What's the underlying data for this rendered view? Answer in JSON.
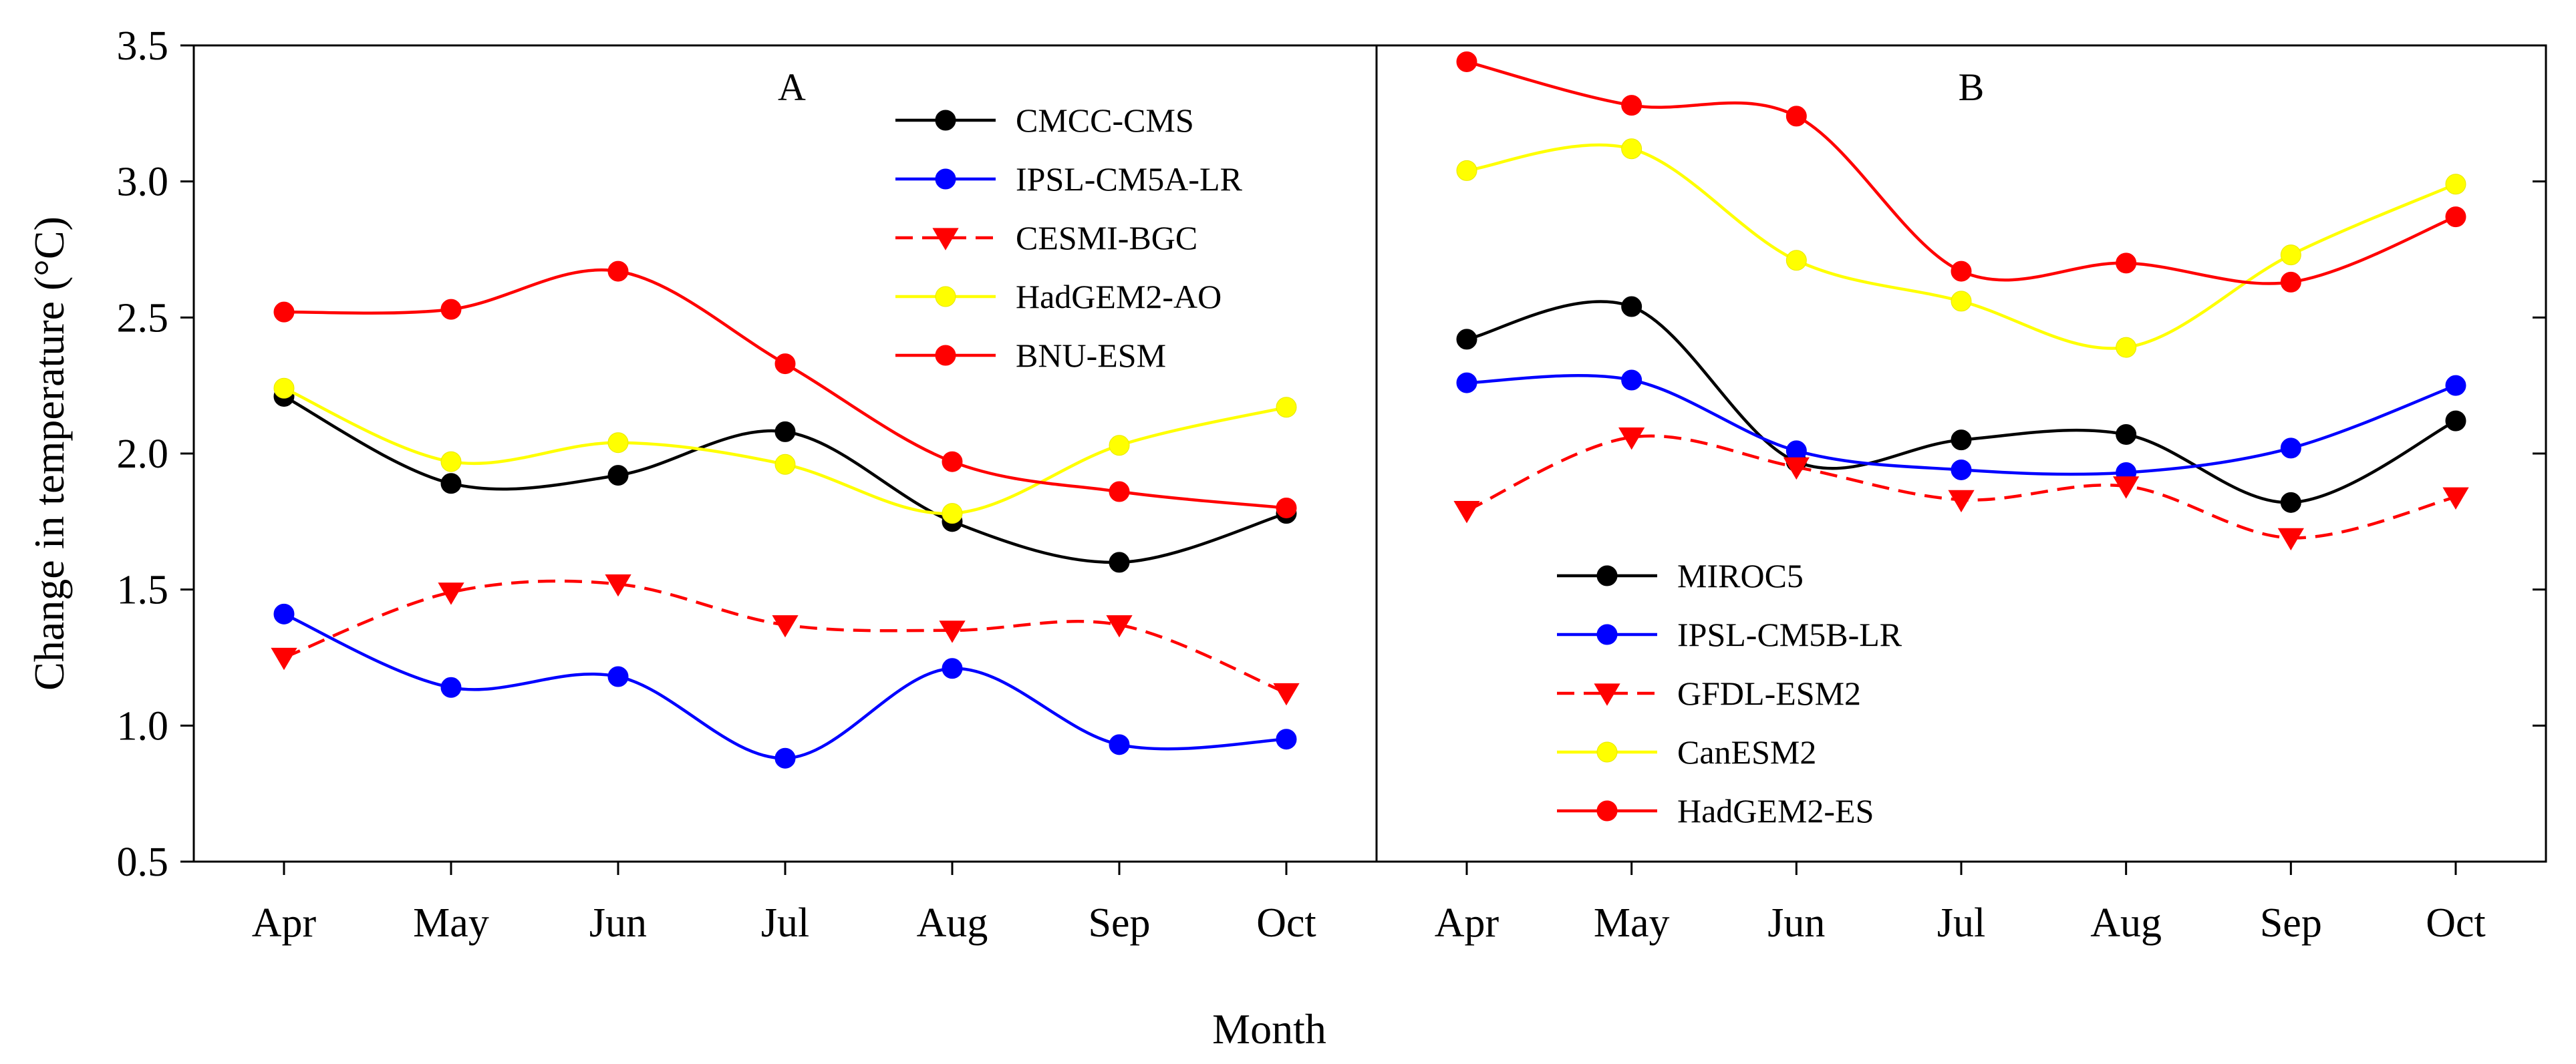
{
  "chart_data": {
    "type": "line",
    "xlabel": "Month",
    "ylabel": "Change in temperature (°C)",
    "ylim": [
      0.5,
      3.5
    ],
    "yticks": [
      "0.5",
      "1.0",
      "1.5",
      "2.0",
      "2.5",
      "3.0",
      "3.5"
    ],
    "categories": [
      "Apr",
      "May",
      "Jun",
      "Jul",
      "Aug",
      "Sep",
      "Oct"
    ],
    "panels": [
      {
        "label": "A",
        "legend_position": "top-right",
        "series": [
          {
            "name": "CMCC-CMS",
            "color": "#000000",
            "marker": "circle",
            "dash": "solid",
            "values": [
              2.21,
              1.89,
              1.92,
              2.08,
              1.75,
              1.6,
              1.78
            ]
          },
          {
            "name": "IPSL-CM5A-LR",
            "color": "#0000ff",
            "marker": "circle",
            "dash": "solid",
            "values": [
              1.41,
              1.14,
              1.18,
              0.88,
              1.21,
              0.93,
              0.95
            ]
          },
          {
            "name": "CESMI-BGC",
            "color": "#ff0000",
            "marker": "triangle-down",
            "dash": "dashed",
            "values": [
              1.25,
              1.49,
              1.52,
              1.37,
              1.35,
              1.37,
              1.12
            ]
          },
          {
            "name": "HadGEM2-AO",
            "color": "#ffff00",
            "marker": "circle",
            "dash": "solid",
            "values": [
              2.24,
              1.97,
              2.04,
              1.96,
              1.78,
              2.03,
              2.17
            ]
          },
          {
            "name": "BNU-ESM",
            "color": "#ff0000",
            "marker": "circle",
            "dash": "solid",
            "values": [
              2.52,
              2.53,
              2.67,
              2.33,
              1.97,
              1.86,
              1.8
            ]
          }
        ]
      },
      {
        "label": "B",
        "legend_position": "bottom-left",
        "series": [
          {
            "name": "MIROC5",
            "color": "#000000",
            "marker": "circle",
            "dash": "solid",
            "values": [
              2.42,
              2.54,
              1.97,
              2.05,
              2.07,
              1.82,
              2.12
            ]
          },
          {
            "name": "IPSL-CM5B-LR",
            "color": "#0000ff",
            "marker": "circle",
            "dash": "solid",
            "values": [
              2.26,
              2.27,
              2.01,
              1.94,
              1.93,
              2.02,
              2.25
            ]
          },
          {
            "name": "GFDL-ESM2",
            "color": "#ff0000",
            "marker": "triangle-down",
            "dash": "dashed",
            "values": [
              1.79,
              2.06,
              1.95,
              1.83,
              1.88,
              1.69,
              1.84
            ]
          },
          {
            "name": "CanESM2",
            "color": "#ffff00",
            "marker": "circle",
            "dash": "solid",
            "values": [
              3.04,
              3.12,
              2.71,
              2.56,
              2.39,
              2.73,
              2.99
            ]
          },
          {
            "name": "HadGEM2-ES",
            "color": "#ff0000",
            "marker": "circle",
            "dash": "solid",
            "values": [
              3.44,
              3.28,
              3.24,
              2.67,
              2.7,
              2.63,
              2.87
            ]
          }
        ]
      }
    ]
  }
}
